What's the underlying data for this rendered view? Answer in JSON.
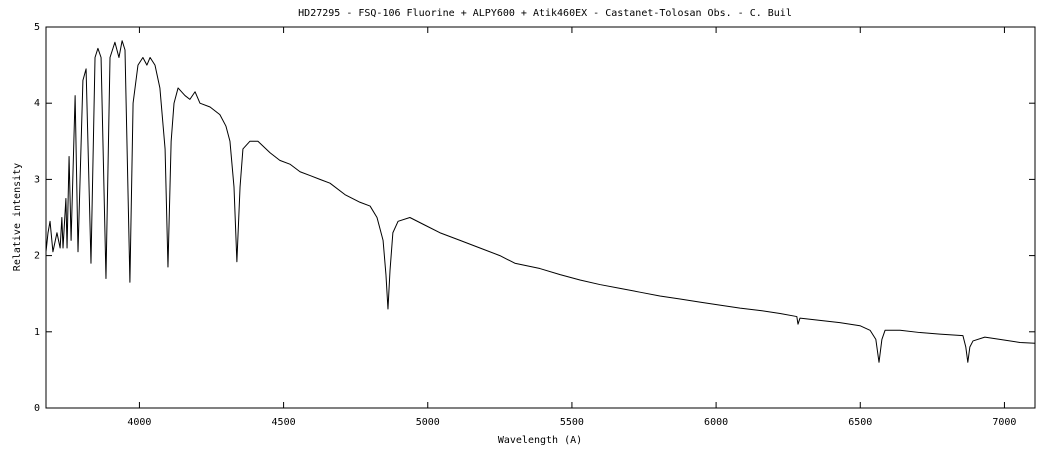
{
  "chart_data": {
    "type": "line",
    "title": "HD27295 - FSQ-106 Fluorine + ALPY600 + Atik460EX - Castanet-Tolosan Obs. - C. Buil",
    "x_label": "Wavelength (A)",
    "y_label": "Relative intensity",
    "xlim": [
      3676,
      7106
    ],
    "ylim": [
      0,
      5
    ],
    "xticks": [
      4000,
      4500,
      5000,
      5500,
      6000,
      6500,
      7000
    ],
    "yticks": [
      0,
      1,
      2,
      3,
      4,
      5
    ],
    "grid": false,
    "series": [
      {
        "color": "#000000",
        "x": [
          3676,
          3683,
          3690,
          3700,
          3714,
          3725,
          3731,
          3735,
          3745,
          3749,
          3756,
          3763,
          3777,
          3787,
          3804,
          3815,
          3832,
          3846,
          3856,
          3867,
          3884,
          3898,
          3915,
          3929,
          3940,
          3950,
          3967,
          3978,
          3995,
          4012,
          4026,
          4037,
          4054,
          4071,
          4089,
          4099,
          4110,
          4120,
          4134,
          4158,
          4175,
          4193,
          4210,
          4245,
          4279,
          4300,
          4314,
          4328,
          4338,
          4349,
          4359,
          4383,
          4411,
          4453,
          4487,
          4522,
          4557,
          4592,
          4626,
          4661,
          4713,
          4765,
          4800,
          4824,
          4845,
          4855,
          4862,
          4869,
          4879,
          4897,
          4938,
          4990,
          5042,
          5112,
          5181,
          5250,
          5302,
          5389,
          5459,
          5528,
          5597,
          5667,
          5736,
          5805,
          5875,
          5944,
          6013,
          6083,
          6152,
          6222,
          6280,
          6284,
          6291,
          6360,
          6429,
          6499,
          6534,
          6554,
          6565,
          6575,
          6586,
          6638,
          6707,
          6776,
          6856,
          6866,
          6873,
          6880,
          6891,
          6932,
          6984,
          7054,
          7106
        ],
        "values": [
          2.05,
          2.3,
          2.45,
          2.05,
          2.3,
          2.1,
          2.5,
          2.1,
          2.75,
          2.1,
          3.3,
          2.2,
          4.1,
          2.05,
          4.3,
          4.45,
          1.9,
          4.6,
          4.72,
          4.6,
          1.7,
          4.6,
          4.8,
          4.6,
          4.82,
          4.7,
          1.65,
          4.0,
          4.5,
          4.6,
          4.5,
          4.6,
          4.5,
          4.2,
          3.4,
          1.85,
          3.5,
          4.0,
          4.2,
          4.1,
          4.05,
          4.15,
          4.0,
          3.95,
          3.85,
          3.7,
          3.5,
          2.9,
          1.92,
          2.9,
          3.4,
          3.5,
          3.5,
          3.35,
          3.25,
          3.2,
          3.1,
          3.05,
          3.0,
          2.95,
          2.8,
          2.7,
          2.65,
          2.5,
          2.2,
          1.75,
          1.3,
          1.8,
          2.3,
          2.45,
          2.5,
          2.4,
          2.3,
          2.2,
          2.1,
          2.0,
          1.9,
          1.83,
          1.75,
          1.68,
          1.62,
          1.57,
          1.52,
          1.47,
          1.43,
          1.39,
          1.35,
          1.31,
          1.28,
          1.24,
          1.2,
          1.1,
          1.18,
          1.15,
          1.12,
          1.08,
          1.02,
          0.9,
          0.6,
          0.9,
          1.02,
          1.02,
          0.99,
          0.97,
          0.95,
          0.8,
          0.6,
          0.8,
          0.88,
          0.93,
          0.9,
          0.86,
          0.85
        ]
      }
    ]
  }
}
